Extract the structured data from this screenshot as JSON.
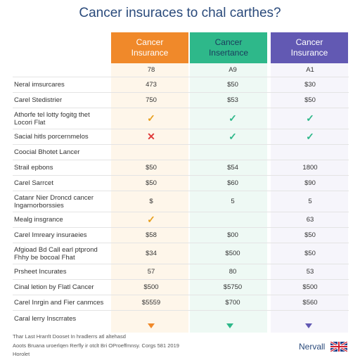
{
  "chart_data": {
    "type": "table",
    "title": "Cancer insuraces to chal carthes?",
    "columns": [
      {
        "label": "Cancer\nInsurance",
        "color": "#f0892a",
        "tint": "#fef3e4",
        "check": "#e8a020"
      },
      {
        "label": "Cancer\nInsertance",
        "color": "#2eb88a",
        "tint": "#eaf8f1",
        "check": "#2eb88a"
      },
      {
        "label": "Cancer\nInsurance",
        "color": "#6259b3",
        "tint": "#f3f2fa",
        "check": "#2eb88a"
      }
    ],
    "header_row": [
      "78",
      "A9",
      "A1"
    ],
    "rows": [
      {
        "label": "Neral imsurcares",
        "values": [
          "473",
          "$50",
          "$30"
        ]
      },
      {
        "label": "Carel Stedistrier",
        "values": [
          "750",
          "$53",
          "$50"
        ]
      },
      {
        "label": "Athorfe tel lotty fogitg thet\nLocori Flat",
        "values": [
          "check",
          "check",
          "check"
        ]
      },
      {
        "label": "Sacial hitls porcernmelos",
        "values": [
          "cross",
          "check",
          "check"
        ]
      },
      {
        "label": "Coocial Bhotet Lancer",
        "values": [
          "",
          "",
          ""
        ]
      },
      {
        "label": "Strail epbons",
        "values": [
          "$50",
          "$54",
          "1800"
        ]
      },
      {
        "label": "Carel Sarrcet",
        "values": [
          "$50",
          "$60",
          "$90"
        ]
      },
      {
        "label": "Catanr Nier Droncd cancer\nIngarnorborssies",
        "values": [
          "$",
          "5",
          "5"
        ]
      },
      {
        "label": "Mealg insgrance",
        "values": [
          "check",
          "",
          "63"
        ]
      },
      {
        "label": "Carel Imreary insuraeies",
        "values": [
          "$58",
          "$00",
          "$50"
        ]
      },
      {
        "label": "Afgioad Bd Call earl ptprond\nFhhy be bocoal Fhat",
        "values": [
          "$34",
          "$500",
          "$50"
        ]
      },
      {
        "label": "Prsheet Incurates",
        "values": [
          "57",
          "80",
          "53"
        ]
      },
      {
        "label": "Cinal letion by Flatl Cancer",
        "values": [
          "$500",
          "$5750",
          "$500"
        ]
      },
      {
        "label": "Carel Inrgin and Fier canmces",
        "values": [
          "$5559",
          "$700",
          "$560"
        ]
      },
      {
        "label": "Caral lerry Inscrrates",
        "values": [
          "",
          "",
          ""
        ]
      }
    ],
    "triangle_colors": [
      "#f0892a",
      "#2eb88a",
      "#6259b3"
    ],
    "check_symbol": "✓",
    "cross_symbol": "✕",
    "cross_color": "#e03a3a"
  },
  "footer": {
    "line1": "Thar Last Hrarrlt Dooset In hradlerrs atl altehasd",
    "line2": "Aoots Bruana uroerlqen Rerfly ir otclt Bri OProeffmnsy. Corgs 581 2019",
    "line3": "Horolet"
  },
  "brand": {
    "name": "Nervall"
  },
  "flag_icon": "uk-flag-icon"
}
